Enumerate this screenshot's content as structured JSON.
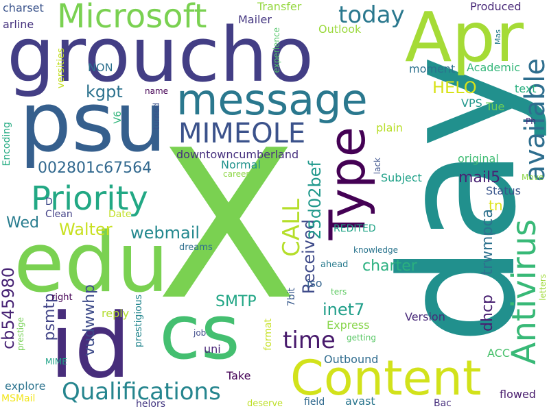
{
  "words": [
    {
      "text": "X",
      "color": "#7ad151"
    },
    {
      "text": "day",
      "color": "#21908d"
    },
    {
      "text": "groucho",
      "color": "#433e85"
    },
    {
      "text": "psu",
      "color": "#355f8d"
    },
    {
      "text": "edu",
      "color": "#7ad151"
    },
    {
      "text": "id",
      "color": "#472d7b"
    },
    {
      "text": "Apr",
      "color": "#a5db36"
    },
    {
      "text": "cs",
      "color": "#44bf70"
    },
    {
      "text": "Content",
      "color": "#d2e21b"
    },
    {
      "text": "message",
      "color": "#2a788e"
    },
    {
      "text": "Type",
      "color": "#440154"
    },
    {
      "text": "Microsoft",
      "color": "#7ad151"
    },
    {
      "text": "Priority",
      "color": "#22a884"
    },
    {
      "text": "Antivirus",
      "color": "#38b977"
    },
    {
      "text": "MIMEOLE",
      "color": "#3b528b"
    },
    {
      "text": "available",
      "color": "#2e6e8e"
    },
    {
      "text": "Qualifications",
      "color": "#25858e"
    },
    {
      "text": "today",
      "color": "#2a788e"
    },
    {
      "text": "time",
      "color": "#481a6c"
    },
    {
      "text": "CALL",
      "color": "#b5de2b"
    },
    {
      "text": "002801c67564",
      "color": "#31688e"
    },
    {
      "text": "Received",
      "color": "#3e4a89"
    },
    {
      "text": "25d02bef",
      "color": "#1f988b"
    },
    {
      "text": "psmtp",
      "color": "#414487"
    },
    {
      "text": "kgpt",
      "color": "#2c728e"
    },
    {
      "text": "HELO",
      "color": "#d8e219"
    },
    {
      "text": "Walter",
      "color": "#c8e020"
    },
    {
      "text": "webmail",
      "color": "#23888e"
    },
    {
      "text": "cb545980",
      "color": "#482475"
    },
    {
      "text": "inet7",
      "color": "#1f9e89"
    },
    {
      "text": "SMTP",
      "color": "#21a685"
    },
    {
      "text": "dhcp",
      "color": "#482071"
    },
    {
      "text": "trwmpca",
      "color": "#2d718e"
    },
    {
      "text": "mail5",
      "color": "#482374"
    },
    {
      "text": "charter",
      "color": "#2ab07f"
    },
    {
      "text": "Wed",
      "color": "#287c8e"
    },
    {
      "text": "vudwwhp",
      "color": "#3e4c8a"
    },
    {
      "text": "downtowncumberland",
      "color": "#46307e"
    },
    {
      "text": "tn",
      "color": "#dde318"
    },
    {
      "text": "Outbound",
      "color": "#2f6c8e"
    },
    {
      "text": "Version",
      "color": "#482979"
    },
    {
      "text": "Express",
      "color": "#86d549"
    },
    {
      "text": "Normal",
      "color": "#20928c"
    },
    {
      "text": "Subject",
      "color": "#1fa188"
    },
    {
      "text": "original",
      "color": "#3fbc73"
    },
    {
      "text": "Status",
      "color": "#39558c"
    },
    {
      "text": "plain",
      "color": "#b8de29"
    },
    {
      "text": "Academic",
      "color": "#34b679"
    },
    {
      "text": "moment",
      "color": "#2c718e"
    },
    {
      "text": "VPS",
      "color": "#1f968b"
    },
    {
      "text": "text",
      "color": "#29af7f"
    },
    {
      "text": "Tue",
      "color": "#6ece58"
    },
    {
      "text": "iso",
      "color": "#33638d"
    },
    {
      "text": "Take",
      "color": "#440256"
    },
    {
      "text": "flowed",
      "color": "#481b6d"
    },
    {
      "text": "ACC",
      "color": "#4ac16d"
    },
    {
      "text": "NON",
      "color": "#2d708e"
    },
    {
      "text": "charset",
      "color": "#3a538b"
    },
    {
      "text": "arline",
      "color": "#46327e"
    },
    {
      "text": "Mailer",
      "color": "#453781"
    },
    {
      "text": "Transfer",
      "color": "#95d840"
    },
    {
      "text": "Outlook",
      "color": "#9bd93c"
    },
    {
      "text": "Produced",
      "color": "#482878"
    },
    {
      "text": "Mas",
      "color": "#287d8e"
    },
    {
      "text": "Ph",
      "color": "#472c7a"
    },
    {
      "text": "Move",
      "color": "#8bd646"
    },
    {
      "text": "V6",
      "color": "#31b57b"
    },
    {
      "text": "Encoding",
      "color": "#25ab82"
    },
    {
      "text": "versities",
      "color": "#c2df23"
    },
    {
      "text": "name",
      "color": "#440154"
    },
    {
      "text": "turned",
      "color": "#3b518b"
    },
    {
      "text": "experience",
      "color": "#52c569"
    },
    {
      "text": "career",
      "color": "#8ed645"
    },
    {
      "text": "lack",
      "color": "#3b518b"
    },
    {
      "text": "Clean",
      "color": "#424086"
    },
    {
      "text": "Date",
      "color": "#c0df25"
    },
    {
      "text": "D",
      "color": "#3e4989"
    },
    {
      "text": "REDITED",
      "color": "#20a386"
    },
    {
      "text": "knowledge",
      "color": "#2b758e"
    },
    {
      "text": "dreams",
      "color": "#2e6f8e"
    },
    {
      "text": "ahead",
      "color": "#297b8e"
    },
    {
      "text": "ters",
      "color": "#5ec962"
    },
    {
      "text": "7bit",
      "color": "#38598c"
    },
    {
      "text": "reply",
      "color": "#b2dd2d"
    },
    {
      "text": "right",
      "color": "#440154"
    },
    {
      "text": "prestigious",
      "color": "#24868e"
    },
    {
      "text": "letters",
      "color": "#9fda3a"
    },
    {
      "text": "prestige",
      "color": "#75d054"
    },
    {
      "text": "format",
      "color": "#c5e021"
    },
    {
      "text": "job",
      "color": "#3e4a89"
    },
    {
      "text": "getting",
      "color": "#58c765"
    },
    {
      "text": "uni",
      "color": "#482677"
    },
    {
      "text": "MIME",
      "color": "#1fa287"
    },
    {
      "text": "explore",
      "color": "#2c738e"
    },
    {
      "text": "MSMail",
      "color": "#f1e51d"
    },
    {
      "text": "helors",
      "color": "#453882"
    },
    {
      "text": "field",
      "color": "#30698e"
    },
    {
      "text": "avast",
      "color": "#2a768e"
    },
    {
      "text": "deserve",
      "color": "#bddf26"
    },
    {
      "text": "Bac",
      "color": "#472f7d"
    }
  ]
}
